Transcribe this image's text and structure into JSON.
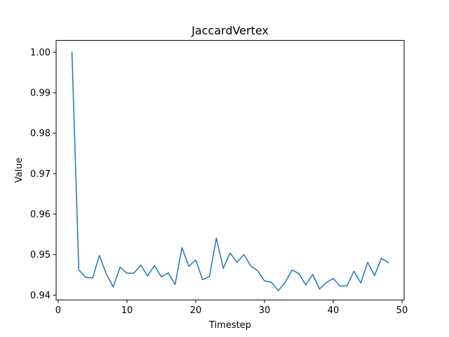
{
  "chart_data": {
    "type": "line",
    "title": "JaccardVertex",
    "xlabel": "Timestep",
    "ylabel": "Value",
    "xlim": [
      -0.3,
      50.3
    ],
    "ylim": [
      0.9388,
      1.0029
    ],
    "xticks": [
      0,
      10,
      20,
      30,
      40,
      50
    ],
    "xtick_labels": [
      "0",
      "10",
      "20",
      "30",
      "40",
      "50"
    ],
    "yticks": [
      0.94,
      0.95,
      0.96,
      0.97,
      0.98,
      0.99,
      1.0
    ],
    "ytick_labels": [
      "0.94",
      "0.95",
      "0.96",
      "0.97",
      "0.98",
      "0.99",
      "1.00"
    ],
    "grid": false,
    "series": [
      {
        "color": "#1f77b4",
        "x": [
          2,
          3,
          4,
          5,
          6,
          7,
          8,
          9,
          10,
          11,
          12,
          13,
          14,
          15,
          16,
          17,
          18,
          19,
          20,
          21,
          22,
          23,
          24,
          25,
          26,
          27,
          28,
          29,
          30,
          31,
          32,
          33,
          34,
          35,
          36,
          37,
          38,
          39,
          40,
          41,
          42,
          43,
          44,
          45,
          46,
          47,
          48
        ],
        "values": [
          1.0,
          0.9462,
          0.9444,
          0.9442,
          0.9498,
          0.9452,
          0.942,
          0.9469,
          0.9454,
          0.9454,
          0.9474,
          0.9447,
          0.9473,
          0.9445,
          0.9455,
          0.9426,
          0.9517,
          0.9471,
          0.9487,
          0.9438,
          0.9446,
          0.9541,
          0.9466,
          0.9504,
          0.9481,
          0.95,
          0.9472,
          0.946,
          0.9435,
          0.9432,
          0.9411,
          0.9431,
          0.9462,
          0.9453,
          0.9425,
          0.9451,
          0.9415,
          0.9431,
          0.9441,
          0.9422,
          0.9423,
          0.9459,
          0.943,
          0.9481,
          0.9448,
          0.9491,
          0.948
        ]
      }
    ]
  }
}
